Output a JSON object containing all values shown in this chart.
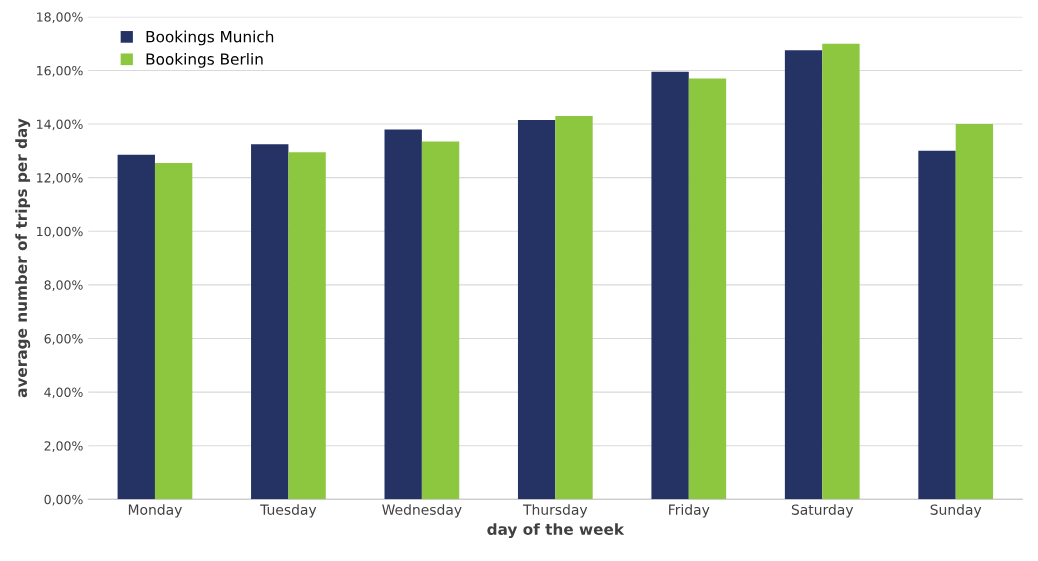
{
  "chart_data": {
    "type": "bar",
    "categories": [
      "Monday",
      "Tuesday",
      "Wednesday",
      "Thursday",
      "Friday",
      "Saturday",
      "Sunday"
    ],
    "series": [
      {
        "name": "Bookings Munich",
        "color": "#253264",
        "values": [
          12.85,
          13.25,
          13.8,
          14.15,
          15.95,
          16.75,
          13.0
        ]
      },
      {
        "name": "Bookings Berlin",
        "color": "#8dc63f",
        "values": [
          12.55,
          12.95,
          13.35,
          14.3,
          15.7,
          17.0,
          14.0
        ]
      }
    ],
    "xlabel": "day of the week",
    "ylabel": "average number of trips per day",
    "ylim": [
      0,
      18
    ],
    "yticks": [
      {
        "value": 0,
        "label": "0,00%"
      },
      {
        "value": 2,
        "label": "2,00%"
      },
      {
        "value": 4,
        "label": "4,00%"
      },
      {
        "value": 6,
        "label": "6,00%"
      },
      {
        "value": 8,
        "label": "8,00%"
      },
      {
        "value": 10,
        "label": "10,00%"
      },
      {
        "value": 12,
        "label": "12,00%"
      },
      {
        "value": 14,
        "label": "14,00%"
      },
      {
        "value": 16,
        "label": "16,00%"
      },
      {
        "value": 18,
        "label": "18,00%"
      }
    ],
    "grid": "y",
    "legend": "top left"
  }
}
